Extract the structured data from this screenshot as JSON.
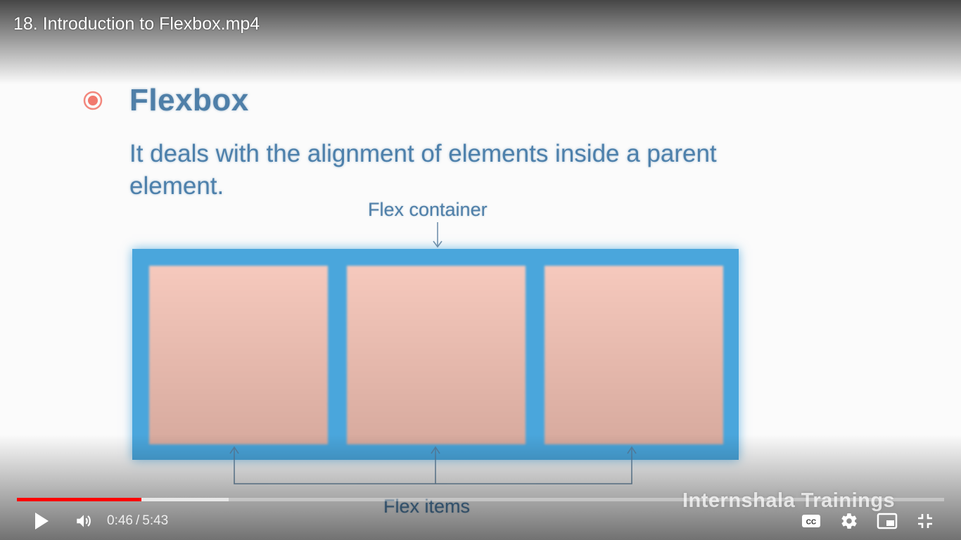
{
  "window": {
    "title": "18. Introduction to Flexbox.mp4"
  },
  "slide": {
    "title": "Flexbox",
    "body": "It deals with the alignment of elements inside a parent element.",
    "container_label": "Flex container",
    "items_label": "Flex items",
    "item_count": 3,
    "watermark": "Internshala Trainings"
  },
  "player": {
    "current_time": "0:46",
    "separator": "/",
    "duration": "5:43",
    "progress_fraction": 0.134,
    "buffered_fraction": 0.228
  },
  "icons": {
    "play": "play-icon",
    "volume": "volume-icon",
    "captions": "cc-icon",
    "settings": "gear-icon",
    "miniplayer": "miniplayer-icon",
    "fullscreen": "exit-fullscreen-icon",
    "bullet": "target-bullet-icon"
  },
  "colors": {
    "accent": "#ff0000",
    "slide_text": "#4f7fa8",
    "container_blue": "#4aa6dc",
    "item_pink": "#f6c9bd",
    "bullet_red": "#f06a5e"
  }
}
